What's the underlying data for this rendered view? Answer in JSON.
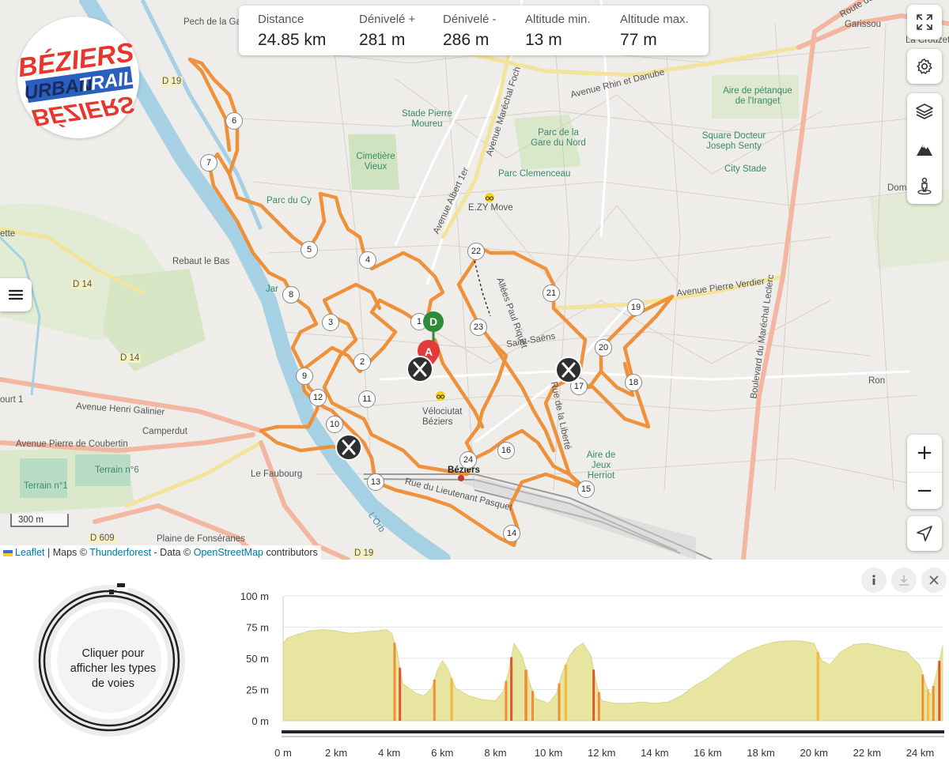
{
  "stats": [
    {
      "label": "Distance",
      "value": "24.85 km"
    },
    {
      "label": "Dénivelé +",
      "value": "281 m"
    },
    {
      "label": "Dénivelé -",
      "value": "286 m"
    },
    {
      "label": "Altitude min.",
      "value": "13 m"
    },
    {
      "label": "Altitude max.",
      "value": "77 m"
    }
  ],
  "logo": {
    "line1": "BÉZIERS",
    "line2": "URBAN",
    "line3": "TRAIL",
    "line4": "BÉZIERS"
  },
  "map_controls": {
    "fullscreen_icon": "fullscreen-icon",
    "settings_icon": "gear-icon",
    "layers_icon": "layers-icon",
    "elevation_icon": "mountain-icon",
    "street_view_icon": "pegman-icon",
    "menu_icon": "hamburger-icon",
    "zoom_in": "+",
    "zoom_out": "−",
    "locate_icon": "locate-arrow-icon"
  },
  "scale": "300 m",
  "attribution": {
    "leaflet": "Leaflet",
    "sep1": " | Maps © ",
    "thunderforest": "Thunderforest",
    "sep2": " - Data © ",
    "osm": "OpenStreetMap",
    "contributors": " contributors"
  },
  "map_labels": [
    "Pech de la Ga",
    "Garissou",
    "La Crouzette",
    "Route de",
    "Stade Pierre Moureu",
    "Cimetière Vieux",
    "Parc de la Gare du Nord",
    "Parc Clemenceau",
    "E.ZY Move",
    "Avenue Rhin et Danube",
    "Aire de pétanque de l'Iranget",
    "Square Docteur Joseph Senty",
    "City Stade",
    "Doma",
    "Parc du Cy",
    "Rebaut le Bas",
    "Avenue Henri Galinier",
    "Avenue Pierre de Coubertin",
    "Camperdut",
    "Terrain n°6",
    "Terrain n°1",
    "Le Faubourg",
    "Plaine de Fonséranes",
    "Béziers",
    "Vélociutat Béziers",
    "Rue du Lieutenant Pasquet",
    "Aire de Jeux Herriot",
    "Boulevard du Maréchal Leclerc",
    "Avenue Pierre Verdier",
    "Avenue Maréchal Foch",
    "Avenue Albert 1er",
    "Allées Paul Riquet",
    "Rue de la Liberté",
    "D 19",
    "D 14",
    "D 609",
    "Jar",
    "Ron",
    "ette",
    "ourt 1",
    "Saint-Saëns",
    "L'Orb"
  ],
  "markers": [
    "1",
    "2",
    "3",
    "4",
    "5",
    "6",
    "7",
    "8",
    "9",
    "10",
    "11",
    "12",
    "13",
    "14",
    "15",
    "16",
    "17",
    "18",
    "19",
    "20",
    "21",
    "22",
    "23",
    "24"
  ],
  "start_marker": "D",
  "finish_marker": "A",
  "donut_text": "Cliquer pour afficher les types de voies",
  "elevation_buttons": {
    "info": "info-icon",
    "download": "download-icon",
    "close": "close-icon"
  },
  "chart_data": {
    "type": "area",
    "title": "",
    "xlabel": "",
    "ylabel": "",
    "xlim": [
      0,
      24.85
    ],
    "ylim": [
      0,
      100
    ],
    "x_ticks": [
      "0 m",
      "2 km",
      "4 km",
      "6 km",
      "8 km",
      "10 km",
      "12 km",
      "14 km",
      "16 km",
      "18 km",
      "20 km",
      "22 km",
      "24 km"
    ],
    "y_ticks": [
      "0 m",
      "25 m",
      "50 m",
      "75 m",
      "100 m"
    ],
    "grid": true,
    "series": [
      {
        "x": [
          0,
          0.15,
          0.5,
          1,
          1.5,
          2,
          2.5,
          3,
          3.5,
          3.9,
          4.1,
          4.3,
          4.5,
          5,
          5.3,
          5.6,
          5.8,
          6,
          6.2,
          6.5,
          7,
          7.5,
          8,
          8.3,
          8.5,
          8.7,
          9,
          9.3,
          9.5,
          10,
          10.3,
          10.5,
          10.8,
          11,
          11.3,
          11.6,
          11.8,
          12,
          12.5,
          13,
          13.5,
          14,
          14.5,
          15,
          15.5,
          16,
          16.5,
          17,
          17.5,
          18,
          18.5,
          19,
          19.5,
          20,
          20.3,
          20.6,
          21,
          21.5,
          22,
          22.5,
          23,
          23.5,
          24,
          24.2,
          24.4,
          24.6,
          24.85
        ],
        "y": [
          62,
          66,
          69,
          72,
          73,
          72,
          70,
          71,
          72,
          73,
          70,
          55,
          30,
          22,
          20,
          26,
          40,
          48,
          42,
          26,
          20,
          17,
          16,
          24,
          40,
          62,
          52,
          30,
          18,
          14,
          22,
          38,
          52,
          58,
          62,
          52,
          30,
          16,
          14,
          14,
          15,
          14,
          15,
          20,
          28,
          34,
          42,
          50,
          56,
          60,
          63,
          64,
          64,
          62,
          48,
          45,
          55,
          61,
          62,
          60,
          57,
          55,
          44,
          30,
          20,
          36,
          60
        ]
      }
    ]
  }
}
